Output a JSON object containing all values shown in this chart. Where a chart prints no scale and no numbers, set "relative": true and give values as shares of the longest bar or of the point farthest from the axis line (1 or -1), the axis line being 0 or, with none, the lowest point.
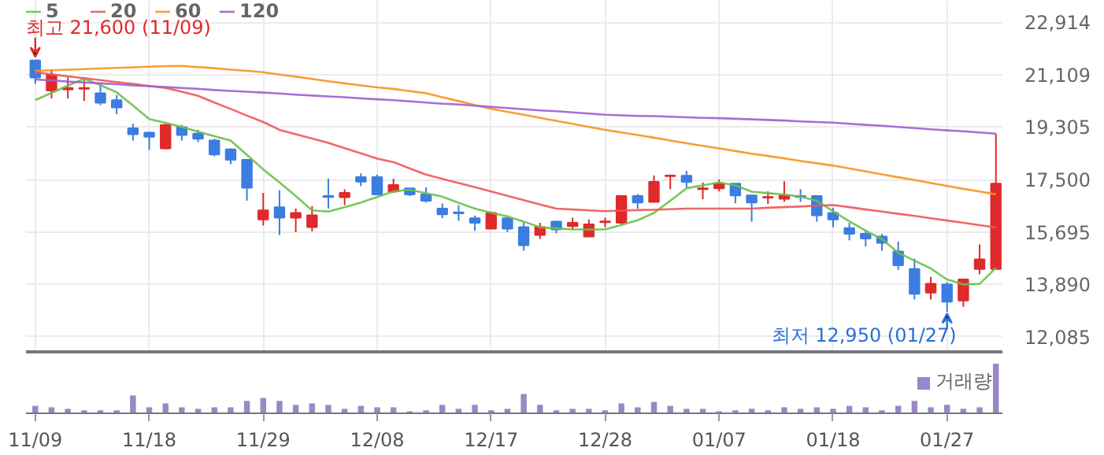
{
  "chart_data": [
    {
      "type": "candlestick",
      "categories": [
        "11/09",
        null,
        null,
        null,
        null,
        null,
        null,
        "11/18",
        null,
        null,
        null,
        null,
        null,
        null,
        "11/29",
        null,
        null,
        null,
        null,
        null,
        null,
        "12/08",
        null,
        null,
        null,
        null,
        null,
        null,
        "12/17",
        null,
        null,
        null,
        null,
        null,
        null,
        "12/28",
        null,
        null,
        null,
        null,
        null,
        null,
        "01/07",
        null,
        null,
        null,
        null,
        null,
        null,
        "01/18",
        null,
        null,
        null,
        null,
        null,
        null,
        "01/27",
        null,
        null,
        null
      ],
      "ylim": [
        11570,
        23650
      ],
      "yticks": [
        {
          "value": 12085,
          "label": "12,085"
        },
        {
          "value": 13890,
          "label": "13,890"
        },
        {
          "value": 15695,
          "label": "15,695"
        },
        {
          "value": 17500,
          "label": "17,500"
        },
        {
          "value": 19305,
          "label": "19,305"
        },
        {
          "value": 21109,
          "label": "21,109"
        },
        {
          "value": 22914,
          "label": "22,914"
        }
      ],
      "tick_labels": "y",
      "grid": true,
      "legend": "top left",
      "annotations": [
        {
          "text": "최고 21,600 (11/09)",
          "x": "11/09",
          "y": 21600
        },
        {
          "text": "최저 12,950 (01/27)",
          "x": "01/27",
          "y": 12950
        }
      ],
      "series": [
        {
          "type": "candlestick",
          "ohlc": [
            [
              21600,
              21600,
              20790,
              21010
            ],
            [
              20560,
              21280,
              20290,
              21100
            ],
            [
              20600,
              21010,
              20290,
              20650
            ],
            [
              20620,
              20920,
              20200,
              20650
            ],
            [
              20470,
              20780,
              20060,
              20140
            ],
            [
              20230,
              20410,
              19750,
              19980
            ],
            [
              19260,
              19420,
              18840,
              19060
            ],
            [
              19110,
              19150,
              18520,
              18970
            ],
            [
              18570,
              19420,
              18540,
              19380
            ],
            [
              19300,
              19380,
              18840,
              19030
            ],
            [
              19080,
              19210,
              18790,
              18900
            ],
            [
              18840,
              18900,
              18300,
              18360
            ],
            [
              18540,
              18570,
              18030,
              18180
            ],
            [
              18180,
              18180,
              16770,
              17220
            ],
            [
              16130,
              17040,
              15920,
              16440
            ],
            [
              16550,
              17130,
              15590,
              16190
            ],
            [
              16190,
              16500,
              15690,
              16350
            ],
            [
              15860,
              16590,
              15720,
              16270
            ],
            [
              16930,
              17530,
              16500,
              16900
            ],
            [
              16890,
              17160,
              16620,
              17040
            ],
            [
              17580,
              17710,
              17270,
              17430
            ],
            [
              17580,
              17670,
              16980,
              16990
            ],
            [
              17090,
              17530,
              17040,
              17310
            ],
            [
              17200,
              17200,
              16930,
              16990
            ],
            [
              16990,
              17230,
              16710,
              16770
            ],
            [
              16500,
              16680,
              16170,
              16300
            ],
            [
              16370,
              16620,
              16080,
              16340
            ],
            [
              16170,
              16260,
              15740,
              16010
            ],
            [
              15810,
              16400,
              15810,
              16350
            ],
            [
              16170,
              16270,
              15690,
              15810
            ],
            [
              15860,
              16010,
              15050,
              15240
            ],
            [
              15590,
              16010,
              15450,
              15860
            ],
            [
              16050,
              16080,
              15650,
              15780
            ],
            [
              15900,
              16190,
              15780,
              16010
            ],
            [
              15540,
              16130,
              15540,
              15960
            ],
            [
              16030,
              16190,
              15860,
              16060
            ],
            [
              16010,
              16930,
              15950,
              16930
            ],
            [
              16930,
              17000,
              16500,
              16710
            ],
            [
              16730,
              17640,
              16730,
              17420
            ],
            [
              17620,
              17670,
              17170,
              17640
            ],
            [
              17630,
              17800,
              17220,
              17420
            ],
            [
              17170,
              17400,
              16820,
              17200
            ],
            [
              17200,
              17500,
              17090,
              17360
            ],
            [
              17360,
              17360,
              16680,
              16950
            ],
            [
              16950,
              16950,
              16050,
              16710
            ],
            [
              16880,
              17090,
              16660,
              16900
            ],
            [
              16840,
              17440,
              16730,
              16950
            ],
            [
              16930,
              17170,
              16730,
              16900
            ],
            [
              16930,
              16930,
              16050,
              16270
            ],
            [
              16350,
              16530,
              15860,
              16130
            ],
            [
              15830,
              16010,
              15410,
              15630
            ],
            [
              15630,
              15780,
              15200,
              15470
            ],
            [
              15540,
              15630,
              15050,
              15320
            ],
            [
              15020,
              15360,
              14390,
              14550
            ],
            [
              14420,
              14780,
              13370,
              13570
            ],
            [
              13610,
              14150,
              13370,
              13910
            ],
            [
              13890,
              13970,
              12950,
              13300
            ],
            [
              13340,
              14060,
              13120,
              14060
            ],
            [
              14420,
              15270,
              14240,
              14750
            ],
            [
              14420,
              19080,
              14420,
              17360
            ]
          ],
          "colors": [
            "#3b7de0",
            "#e0292b",
            "#e0292b",
            "#e0292b",
            "#3b7de0",
            "#3b7de0",
            "#3b7de0",
            "#3b7de0",
            "#e0292b",
            "#3b7de0",
            "#3b7de0",
            "#3b7de0",
            "#3b7de0",
            "#3b7de0",
            "#e0292b",
            "#3b7de0",
            "#e0292b",
            "#e0292b",
            "#3b7de0",
            "#e0292b",
            "#3b7de0",
            "#3b7de0",
            "#e0292b",
            "#3b7de0",
            "#3b7de0",
            "#3b7de0",
            "#3b7de0",
            "#3b7de0",
            "#e0292b",
            "#3b7de0",
            "#3b7de0",
            "#e0292b",
            "#3b7de0",
            "#e0292b",
            "#e0292b",
            "#e0292b",
            "#e0292b",
            "#3b7de0",
            "#e0292b",
            "#e0292b",
            "#3b7de0",
            "#e0292b",
            "#e0292b",
            "#3b7de0",
            "#3b7de0",
            "#e0292b",
            "#e0292b",
            "#3b7de0",
            "#3b7de0",
            "#3b7de0",
            "#3b7de0",
            "#3b7de0",
            "#3b7de0",
            "#3b7de0",
            "#3b7de0",
            "#e0292b",
            "#3b7de0",
            "#e0292b",
            "#e0292b",
            "#e0292b"
          ]
        },
        {
          "type": "line",
          "name": "5",
          "color": "#6cc04a",
          "values": [
            20230,
            20480,
            20730,
            20970,
            20750,
            20500,
            20050,
            19580,
            19450,
            19310,
            19150,
            18990,
            18840,
            18350,
            17850,
            17400,
            16930,
            16440,
            16400,
            16550,
            16710,
            16900,
            17090,
            17150,
            17030,
            16910,
            16700,
            16500,
            16360,
            16230,
            16050,
            15860,
            15820,
            15780,
            15780,
            15780,
            15940,
            16100,
            16350,
            16770,
            17200,
            17300,
            17400,
            17300,
            17080,
            17030,
            16980,
            16910,
            16770,
            16410,
            16060,
            15740,
            15450,
            14980,
            14710,
            14440,
            14060,
            13890,
            13910,
            14460
          ]
        },
        {
          "type": "line",
          "name": "20",
          "color": "#f05656",
          "values": [
            21190,
            21120,
            21050,
            20990,
            20920,
            20850,
            20790,
            20720,
            20650,
            20520,
            20380,
            20150,
            19930,
            19700,
            19480,
            19210,
            19060,
            18910,
            18760,
            18580,
            18400,
            18220,
            18100,
            17880,
            17670,
            17520,
            17380,
            17240,
            17090,
            16940,
            16790,
            16640,
            16500,
            16470,
            16440,
            16410,
            16430,
            16450,
            16460,
            16480,
            16500,
            16500,
            16500,
            16500,
            16500,
            16530,
            16550,
            16570,
            16600,
            16620,
            16550,
            16470,
            16400,
            16320,
            16250,
            16170,
            16090,
            16010,
            15930,
            15850
          ]
        },
        {
          "type": "line",
          "name": "60",
          "color": "#f7931e",
          "values": [
            21240,
            21260,
            21280,
            21300,
            21320,
            21340,
            21360,
            21380,
            21400,
            21410,
            21370,
            21330,
            21280,
            21240,
            21190,
            21110,
            21040,
            20960,
            20880,
            20810,
            20740,
            20670,
            20620,
            20540,
            20470,
            20330,
            20200,
            20060,
            19930,
            19830,
            19730,
            19620,
            19520,
            19420,
            19310,
            19210,
            19120,
            19030,
            18940,
            18840,
            18750,
            18660,
            18570,
            18480,
            18390,
            18310,
            18230,
            18140,
            18060,
            17980,
            17880,
            17780,
            17680,
            17580,
            17480,
            17380,
            17280,
            17180,
            17090,
            16990
          ]
        },
        {
          "type": "line",
          "name": "120",
          "color": "#9d5fcf",
          "values": [
            20940,
            20910,
            20870,
            20840,
            20810,
            20780,
            20740,
            20710,
            20680,
            20650,
            20620,
            20580,
            20550,
            20520,
            20490,
            20460,
            20420,
            20390,
            20360,
            20330,
            20290,
            20260,
            20230,
            20190,
            20150,
            20110,
            20080,
            20040,
            20000,
            19960,
            19920,
            19880,
            19850,
            19810,
            19770,
            19730,
            19710,
            19690,
            19680,
            19660,
            19640,
            19620,
            19610,
            19590,
            19570,
            19550,
            19530,
            19500,
            19480,
            19460,
            19420,
            19380,
            19350,
            19310,
            19270,
            19230,
            19190,
            19160,
            19120,
            19080
          ]
        }
      ]
    },
    {
      "type": "bar",
      "relative": true,
      "categories": [
        "11/09",
        null,
        null,
        null,
        null,
        null,
        null,
        "11/18",
        null,
        null,
        null,
        null,
        null,
        null,
        "11/29",
        null,
        null,
        null,
        null,
        null,
        null,
        "12/08",
        null,
        null,
        null,
        null,
        null,
        null,
        "12/17",
        null,
        null,
        null,
        null,
        null,
        null,
        "12/28",
        null,
        null,
        null,
        null,
        null,
        null,
        "01/07",
        null,
        null,
        null,
        null,
        null,
        null,
        "01/18",
        null,
        null,
        null,
        null,
        null,
        null,
        "01/27",
        null,
        null,
        null
      ],
      "tick_labels": "x",
      "legend": "top right",
      "series": [
        {
          "name": "거래량",
          "color": "#9b87c6",
          "values": [
            0.15,
            0.12,
            0.09,
            0.06,
            0.06,
            0.06,
            0.36,
            0.12,
            0.2,
            0.12,
            0.09,
            0.12,
            0.12,
            0.25,
            0.31,
            0.25,
            0.17,
            0.2,
            0.17,
            0.09,
            0.15,
            0.12,
            0.12,
            0.04,
            0.06,
            0.17,
            0.09,
            0.17,
            0.06,
            0.09,
            0.39,
            0.17,
            0.06,
            0.09,
            0.09,
            0.06,
            0.2,
            0.12,
            0.23,
            0.15,
            0.09,
            0.09,
            0.04,
            0.06,
            0.09,
            0.06,
            0.12,
            0.09,
            0.12,
            0.09,
            0.15,
            0.12,
            0.06,
            0.15,
            0.25,
            0.12,
            0.17,
            0.09,
            0.12,
            1
          ]
        }
      ]
    }
  ]
}
